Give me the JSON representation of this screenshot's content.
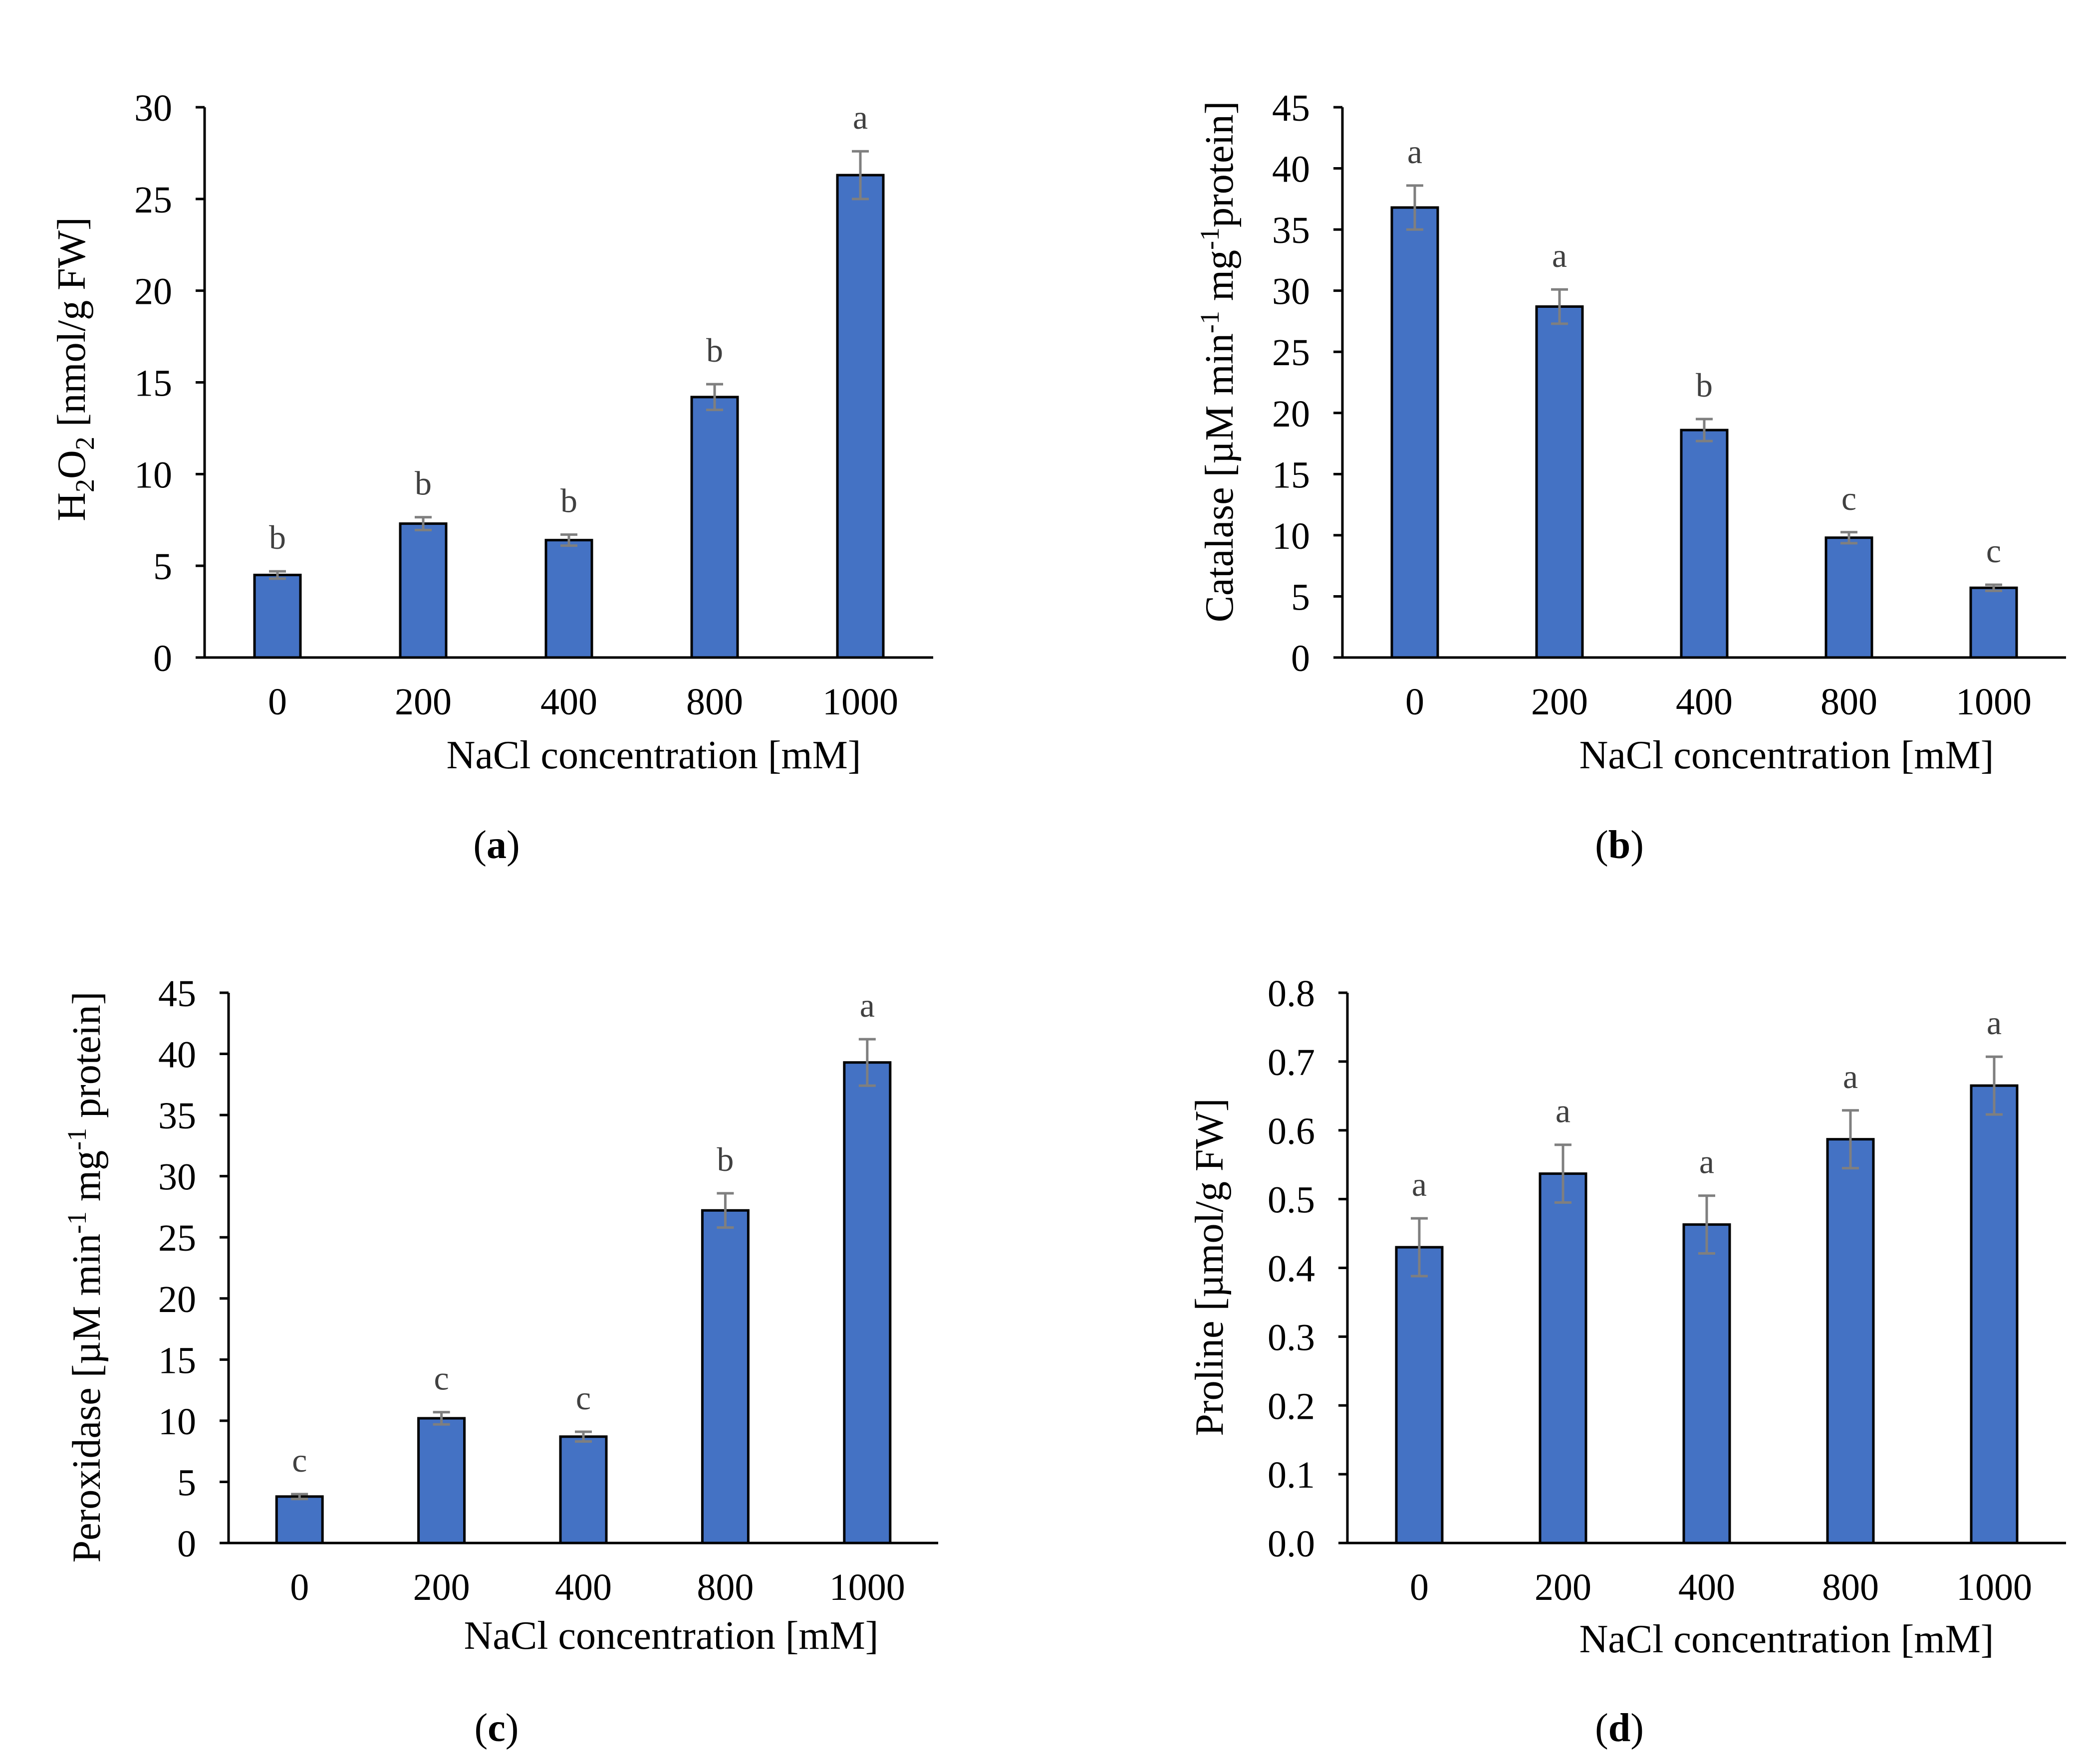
{
  "colors": {
    "bar": "#4472C4",
    "bar_edge": "#000000",
    "error_bar": "#7F7F7F",
    "axis": "#000000",
    "letter": "#404040"
  },
  "chart_data": [
    {
      "id": "a",
      "type": "bar",
      "panel_label": "a",
      "title": "",
      "xlabel": "NaCl concentration [mM]",
      "ylabel": "H2O2 [nmol/g FW]",
      "ylabel_parts": {
        "h": "H",
        "sub1": "2",
        "o": "O",
        "sub2": "2",
        "rest": " [nmol/g FW]"
      },
      "categories": [
        "0",
        "200",
        "400",
        "800",
        "1000"
      ],
      "values": [
        4.5,
        7.3,
        6.4,
        14.2,
        26.3
      ],
      "errors": [
        0.2,
        0.35,
        0.3,
        0.7,
        1.3
      ],
      "letters": [
        "b",
        "b",
        "b",
        "b",
        "a"
      ],
      "ylim": [
        0,
        30
      ],
      "yticks": [
        0,
        5,
        10,
        15,
        20,
        25,
        30
      ],
      "ytick_labels": [
        "0",
        "5",
        "10",
        "15",
        "20",
        "25",
        "30"
      ]
    },
    {
      "id": "b",
      "type": "bar",
      "panel_label": "b",
      "title": "",
      "xlabel": "NaCl concentration [mM]",
      "ylabel": "Catalase [µM min-1 mg-1protein]",
      "ylabel_parts": {
        "p1": "Catalase  [µM min",
        "sup1": "-1",
        "p2": " mg",
        "sup2": "-1",
        "p3": "protein]"
      },
      "categories": [
        "0",
        "200",
        "400",
        "800",
        "1000"
      ],
      "values": [
        36.8,
        28.7,
        18.6,
        9.8,
        5.7
      ],
      "errors": [
        1.8,
        1.4,
        0.9,
        0.45,
        0.25
      ],
      "letters": [
        "a",
        "a",
        "b",
        "c",
        "c"
      ],
      "ylim": [
        0,
        45
      ],
      "yticks": [
        0,
        5,
        10,
        15,
        20,
        25,
        30,
        35,
        40,
        45
      ],
      "ytick_labels": [
        "0",
        "5",
        "10",
        "15",
        "20",
        "25",
        "30",
        "35",
        "40",
        "45"
      ]
    },
    {
      "id": "c",
      "type": "bar",
      "panel_label": "c",
      "title": "",
      "xlabel": "NaCl concentration [mM]",
      "ylabel": "Peroxidase [µM min-1 mg-1 protein]",
      "ylabel_parts": {
        "p1": "Peroxidase [µM min",
        "sup1": "-1",
        "p2": " mg",
        "sup2": "-1",
        "p3": " protein]"
      },
      "categories": [
        "0",
        "200",
        "400",
        "800",
        "1000"
      ],
      "values": [
        3.8,
        10.2,
        8.7,
        27.2,
        39.3
      ],
      "errors": [
        0.2,
        0.5,
        0.4,
        1.4,
        1.9
      ],
      "letters": [
        "c",
        "c",
        "c",
        "b",
        "a"
      ],
      "ylim": [
        0,
        45
      ],
      "yticks": [
        0,
        5,
        10,
        15,
        20,
        25,
        30,
        35,
        40,
        45
      ],
      "ytick_labels": [
        "0",
        "5",
        "10",
        "15",
        "20",
        "25",
        "30",
        "35",
        "40",
        "45"
      ]
    },
    {
      "id": "d",
      "type": "bar",
      "panel_label": "d",
      "title": "",
      "xlabel": "NaCl concentration [mM]",
      "ylabel": "Proline [µmol/g FW]",
      "categories": [
        "0",
        "200",
        "400",
        "800",
        "1000"
      ],
      "values": [
        0.43,
        0.537,
        0.463,
        0.587,
        0.665
      ],
      "errors": [
        0.042,
        0.042,
        0.042,
        0.042,
        0.042
      ],
      "letters": [
        "a",
        "a",
        "a",
        "a",
        "a"
      ],
      "ylim": [
        0,
        0.8
      ],
      "yticks": [
        0,
        0.1,
        0.2,
        0.3,
        0.4,
        0.5,
        0.6,
        0.7,
        0.8
      ],
      "ytick_labels": [
        "0.0",
        "0.1",
        "0.2",
        "0.3",
        "0.4",
        "0.5",
        "0.6",
        "0.7",
        "0.8"
      ]
    }
  ]
}
